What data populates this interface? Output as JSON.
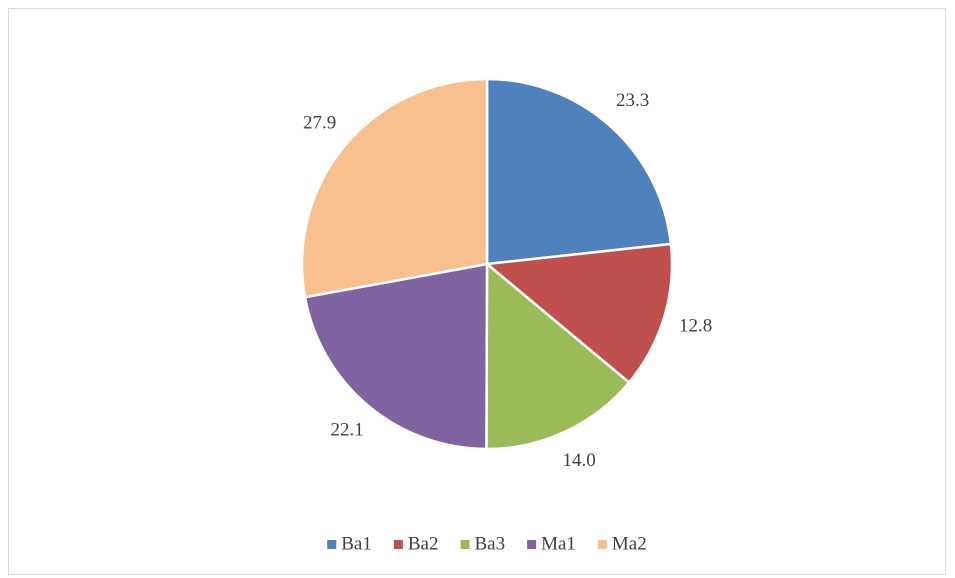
{
  "chart_data": {
    "type": "pie",
    "categories": [
      "Ba1",
      "Ba2",
      "Ba3",
      "Ma1",
      "Ma2"
    ],
    "values": [
      23.3,
      12.8,
      14.0,
      22.1,
      27.9
    ],
    "value_labels": [
      "23.3",
      "12.8",
      "14.0",
      "22.1",
      "27.9"
    ],
    "colors": [
      "#4f81bd",
      "#c0504d",
      "#9bbb59",
      "#8064a2",
      "#f9c08f"
    ],
    "legend": "bottom"
  }
}
